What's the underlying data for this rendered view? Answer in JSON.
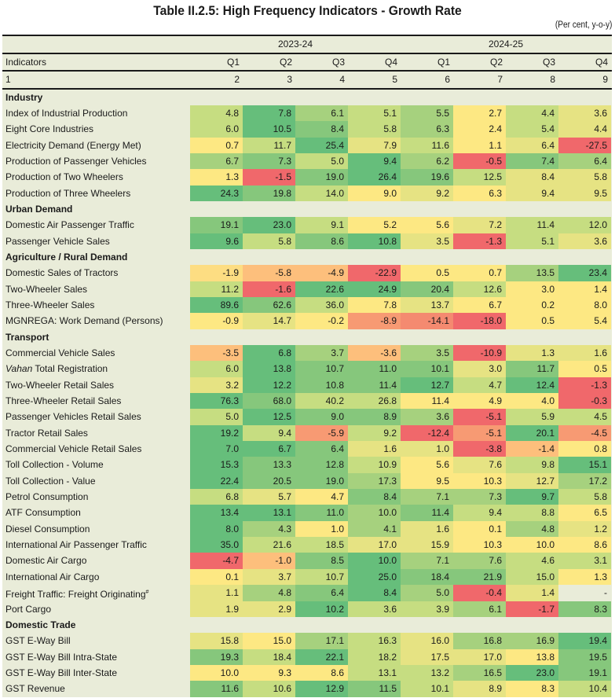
{
  "title": "Table II.2.5: High Frequency Indicators - Growth Rate",
  "units": "(Per cent, y-o-y)",
  "header": {
    "years": [
      "2023-24",
      "2024-25"
    ],
    "indicators_label": "Indicators",
    "quarters": [
      "Q1",
      "Q2",
      "Q3",
      "Q4",
      "Q1",
      "Q2",
      "Q3",
      "Q4"
    ],
    "col_numbers": [
      "1",
      "2",
      "3",
      "4",
      "5",
      "6",
      "7",
      "8",
      "9"
    ]
  },
  "palette": {
    "R": "#f0686b",
    "O": "#f79a73",
    "O2": "#f48a70",
    "LO": "#fdbf7c",
    "YO": "#fddd82",
    "Y": "#fde883",
    "YG": "#e6e383",
    "LG": "#c6dd81",
    "G": "#a6d17e",
    "MG": "#86c77c",
    "DG": "#66be7b",
    "NA": "#e9ecd9"
  },
  "sections": [
    {
      "name": "Industry",
      "rows": [
        {
          "label": "Index of Industrial Production",
          "values": [
            "4.8",
            "7.8",
            "6.1",
            "5.1",
            "5.5",
            "2.7",
            "4.4",
            "3.6"
          ],
          "colors": [
            "LG",
            "DG",
            "G",
            "LG",
            "G",
            "Y",
            "LG",
            "YG"
          ]
        },
        {
          "label": "Eight Core Industries",
          "values": [
            "6.0",
            "10.5",
            "8.4",
            "5.8",
            "6.3",
            "2.4",
            "5.4",
            "4.4"
          ],
          "colors": [
            "LG",
            "DG",
            "MG",
            "LG",
            "G",
            "Y",
            "LG",
            "YG"
          ]
        },
        {
          "label": "Electricity Demand (Energy Met)",
          "values": [
            "0.7",
            "11.7",
            "25.4",
            "7.9",
            "11.6",
            "1.1",
            "6.4",
            "-27.5"
          ],
          "colors": [
            "Y",
            "LG",
            "DG",
            "YG",
            "LG",
            "Y",
            "YG",
            "R"
          ]
        },
        {
          "label": "Production of Passenger Vehicles",
          "values": [
            "6.7",
            "7.3",
            "5.0",
            "9.4",
            "6.2",
            "-0.5",
            "7.4",
            "6.4"
          ],
          "colors": [
            "G",
            "MG",
            "LG",
            "DG",
            "G",
            "R",
            "MG",
            "G"
          ]
        },
        {
          "label": "Production of Two Wheelers",
          "values": [
            "1.3",
            "-1.5",
            "19.0",
            "26.4",
            "19.6",
            "12.5",
            "8.4",
            "5.8"
          ],
          "colors": [
            "Y",
            "R",
            "MG",
            "DG",
            "MG",
            "LG",
            "YG",
            "YG"
          ]
        },
        {
          "label": "Production of Three Wheelers",
          "values": [
            "24.3",
            "19.8",
            "14.0",
            "9.0",
            "9.2",
            "6.3",
            "9.4",
            "9.5"
          ],
          "colors": [
            "DG",
            "MG",
            "LG",
            "Y",
            "YG",
            "Y",
            "YG",
            "YG"
          ]
        }
      ]
    },
    {
      "name": "Urban Demand",
      "rows": [
        {
          "label": "Domestic Air Passenger Traffic",
          "values": [
            "19.1",
            "23.0",
            "9.1",
            "5.2",
            "5.6",
            "7.2",
            "11.4",
            "12.0"
          ],
          "colors": [
            "MG",
            "DG",
            "LG",
            "Y",
            "Y",
            "YG",
            "LG",
            "LG"
          ]
        },
        {
          "label": "Passenger Vehicle Sales",
          "values": [
            "9.6",
            "5.8",
            "8.6",
            "10.8",
            "3.5",
            "-1.3",
            "5.1",
            "3.6"
          ],
          "colors": [
            "DG",
            "LG",
            "MG",
            "DG",
            "YG",
            "R",
            "LG",
            "YG"
          ]
        }
      ]
    },
    {
      "name": "Agriculture / Rural Demand",
      "rows": [
        {
          "label": "Domestic Sales of Tractors",
          "values": [
            "-1.9",
            "-5.8",
            "-4.9",
            "-22.9",
            "0.5",
            "0.7",
            "13.5",
            "23.4"
          ],
          "colors": [
            "YO",
            "LO",
            "LO",
            "R",
            "Y",
            "Y",
            "G",
            "DG"
          ]
        },
        {
          "label": "Two-Wheeler Sales",
          "values": [
            "11.2",
            "-1.6",
            "22.6",
            "24.9",
            "20.4",
            "12.6",
            "3.0",
            "1.4"
          ],
          "colors": [
            "LG",
            "R",
            "DG",
            "DG",
            "MG",
            "LG",
            "Y",
            "Y"
          ]
        },
        {
          "label": "Three-Wheeler Sales",
          "values": [
            "89.6",
            "62.6",
            "36.0",
            "7.8",
            "13.7",
            "6.7",
            "0.2",
            "8.0"
          ],
          "colors": [
            "DG",
            "MG",
            "LG",
            "Y",
            "YG",
            "Y",
            "Y",
            "Y"
          ]
        },
        {
          "label": "MGNREGA: Work Demand (Persons)",
          "values": [
            "-0.9",
            "14.7",
            "-0.2",
            "-8.9",
            "-14.1",
            "-18.0",
            "0.5",
            "5.4"
          ],
          "colors": [
            "Y",
            "YG",
            "Y",
            "O",
            "O2",
            "R",
            "Y",
            "Y"
          ]
        }
      ]
    },
    {
      "name": "Transport",
      "rows": [
        {
          "label": "Commercial Vehicle Sales",
          "values": [
            "-3.5",
            "6.8",
            "3.7",
            "-3.6",
            "3.5",
            "-10.9",
            "1.3",
            "1.6"
          ],
          "colors": [
            "LO",
            "DG",
            "G",
            "LO",
            "G",
            "R",
            "YG",
            "YG"
          ]
        },
        {
          "label": "Vahan",
          "label_rest": " Total Registration",
          "italic": true,
          "values": [
            "6.0",
            "13.8",
            "10.7",
            "11.0",
            "10.1",
            "3.0",
            "11.7",
            "0.5"
          ],
          "colors": [
            "LG",
            "DG",
            "MG",
            "MG",
            "MG",
            "YG",
            "MG",
            "Y"
          ]
        },
        {
          "label": "Two-Wheeler Retail Sales",
          "values": [
            "3.2",
            "12.2",
            "10.8",
            "11.4",
            "12.7",
            "4.7",
            "12.4",
            "-1.3"
          ],
          "colors": [
            "YG",
            "DG",
            "MG",
            "MG",
            "DG",
            "LG",
            "DG",
            "R"
          ]
        },
        {
          "label": "Three-Wheeler Retail Sales",
          "values": [
            "76.3",
            "68.0",
            "40.2",
            "26.8",
            "11.4",
            "4.9",
            "4.0",
            "-0.3"
          ],
          "colors": [
            "DG",
            "MG",
            "LG",
            "LG",
            "Y",
            "Y",
            "Y",
            "R"
          ]
        },
        {
          "label": "Passenger Vehicles Retail Sales",
          "values": [
            "5.0",
            "12.5",
            "9.0",
            "8.9",
            "3.6",
            "-5.1",
            "5.9",
            "4.5"
          ],
          "colors": [
            "LG",
            "DG",
            "MG",
            "MG",
            "G",
            "R",
            "LG",
            "LG"
          ]
        },
        {
          "label": "Tractor Retail Sales",
          "values": [
            "19.2",
            "9.4",
            "-5.9",
            "9.2",
            "-12.4",
            "-5.1",
            "20.1",
            "-4.5"
          ],
          "colors": [
            "DG",
            "LG",
            "O",
            "LG",
            "R",
            "O",
            "DG",
            "O"
          ]
        },
        {
          "label": "Commercial Vehicle Retail Sales",
          "values": [
            "7.0",
            "6.7",
            "6.4",
            "1.6",
            "1.0",
            "-3.8",
            "-1.4",
            "0.8"
          ],
          "colors": [
            "DG",
            "DG",
            "MG",
            "YG",
            "YG",
            "R",
            "LO",
            "Y"
          ]
        },
        {
          "label": "Toll Collection - Volume",
          "values": [
            "15.3",
            "13.3",
            "12.8",
            "10.9",
            "5.6",
            "7.6",
            "9.8",
            "15.1"
          ],
          "colors": [
            "DG",
            "MG",
            "MG",
            "LG",
            "Y",
            "YG",
            "LG",
            "DG"
          ]
        },
        {
          "label": "Toll Collection - Value",
          "values": [
            "22.4",
            "20.5",
            "19.0",
            "17.3",
            "9.5",
            "10.3",
            "12.7",
            "17.2"
          ],
          "colors": [
            "DG",
            "MG",
            "MG",
            "G",
            "Y",
            "Y",
            "YG",
            "G"
          ]
        },
        {
          "label": "Petrol Consumption",
          "values": [
            "6.8",
            "5.7",
            "4.7",
            "8.4",
            "7.1",
            "7.3",
            "9.7",
            "5.8"
          ],
          "colors": [
            "LG",
            "YG",
            "Y",
            "MG",
            "G",
            "G",
            "DG",
            "LG"
          ]
        },
        {
          "label": "ATF Consumption",
          "values": [
            "13.4",
            "13.1",
            "11.0",
            "10.0",
            "11.4",
            "9.4",
            "8.8",
            "6.5"
          ],
          "colors": [
            "DG",
            "DG",
            "MG",
            "G",
            "MG",
            "LG",
            "LG",
            "Y"
          ]
        },
        {
          "label": "Diesel Consumption",
          "values": [
            "8.0",
            "4.3",
            "1.0",
            "4.1",
            "1.6",
            "0.1",
            "4.8",
            "1.2"
          ],
          "colors": [
            "DG",
            "G",
            "Y",
            "G",
            "YG",
            "Y",
            "G",
            "YG"
          ]
        },
        {
          "label": "International Air Passenger Traffic",
          "values": [
            "35.0",
            "21.6",
            "18.5",
            "17.0",
            "15.9",
            "10.3",
            "10.0",
            "8.6"
          ],
          "colors": [
            "DG",
            "LG",
            "LG",
            "YG",
            "YG",
            "Y",
            "Y",
            "Y"
          ]
        },
        {
          "label": "Domestic Air Cargo",
          "values": [
            "-4.7",
            "-1.0",
            "8.5",
            "10.0",
            "7.1",
            "7.6",
            "4.6",
            "3.1"
          ],
          "colors": [
            "R",
            "LO",
            "MG",
            "DG",
            "G",
            "G",
            "LG",
            "LG"
          ]
        },
        {
          "label": "International Air Cargo",
          "values": [
            "0.1",
            "3.7",
            "10.7",
            "25.0",
            "18.4",
            "21.9",
            "15.0",
            "1.3"
          ],
          "colors": [
            "Y",
            "YG",
            "LG",
            "DG",
            "MG",
            "MG",
            "LG",
            "Y"
          ]
        },
        {
          "label": "Freight Traffic: Freight Originating",
          "sup": "#",
          "values": [
            "1.1",
            "4.8",
            "6.4",
            "8.4",
            "5.0",
            "-0.4",
            "1.4",
            "-"
          ],
          "colors": [
            "YG",
            "G",
            "MG",
            "DG",
            "G",
            "R",
            "YG",
            "NA"
          ]
        },
        {
          "label": "Port Cargo",
          "values": [
            "1.9",
            "2.9",
            "10.2",
            "3.6",
            "3.9",
            "6.1",
            "-1.7",
            "8.3"
          ],
          "colors": [
            "YG",
            "YG",
            "DG",
            "LG",
            "LG",
            "G",
            "R",
            "MG"
          ]
        }
      ]
    },
    {
      "name": "Domestic Trade",
      "rows": [
        {
          "label": "GST E-Way Bill",
          "values": [
            "15.8",
            "15.0",
            "17.1",
            "16.3",
            "16.0",
            "16.8",
            "16.9",
            "19.4"
          ],
          "colors": [
            "YG",
            "Y",
            "G",
            "LG",
            "YG",
            "G",
            "G",
            "DG"
          ]
        },
        {
          "label": "GST E-Way Bill Intra-State",
          "values": [
            "19.3",
            "18.4",
            "22.1",
            "18.2",
            "17.5",
            "17.0",
            "13.8",
            "19.5"
          ],
          "colors": [
            "MG",
            "LG",
            "DG",
            "LG",
            "YG",
            "YG",
            "Y",
            "MG"
          ]
        },
        {
          "label": "GST E-Way Bill Inter-State",
          "values": [
            "10.0",
            "9.3",
            "8.6",
            "13.1",
            "13.2",
            "16.5",
            "23.0",
            "19.1"
          ],
          "colors": [
            "Y",
            "Y",
            "Y",
            "LG",
            "LG",
            "G",
            "DG",
            "MG"
          ]
        },
        {
          "label": "GST Revenue",
          "values": [
            "11.6",
            "10.6",
            "12.9",
            "11.5",
            "10.1",
            "8.9",
            "8.3",
            "10.4"
          ],
          "colors": [
            "MG",
            "LG",
            "DG",
            "MG",
            "LG",
            "YG",
            "Y",
            "LG"
          ]
        }
      ]
    }
  ]
}
